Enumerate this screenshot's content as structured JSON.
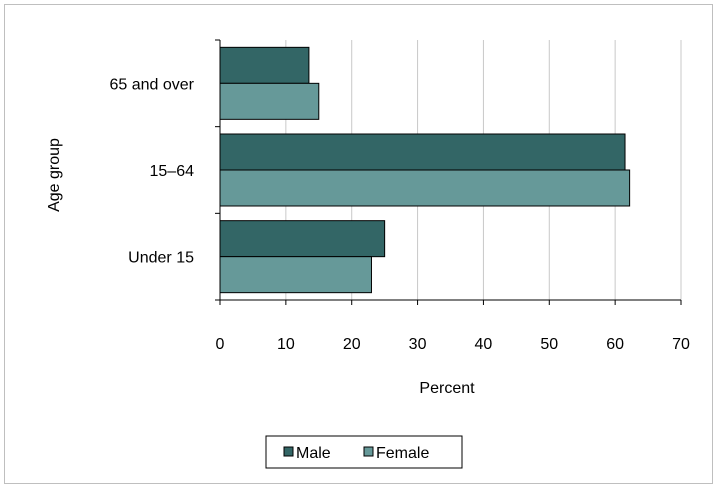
{
  "chart_data": {
    "type": "bar",
    "orientation": "horizontal",
    "categories": [
      "Under 15",
      "15–64",
      "65 and over"
    ],
    "series": [
      {
        "name": "Male",
        "color": "#336666",
        "values": [
          25,
          61.5,
          13.5
        ]
      },
      {
        "name": "Female",
        "color": "#669999",
        "values": [
          23,
          62.2,
          15
        ]
      }
    ],
    "xlabel": "Percent",
    "ylabel": "Age group",
    "xlim": [
      0,
      70
    ],
    "xticks": [
      0,
      10,
      20,
      30,
      40,
      50,
      60,
      70
    ],
    "grid": true,
    "legend_position": "bottom"
  }
}
